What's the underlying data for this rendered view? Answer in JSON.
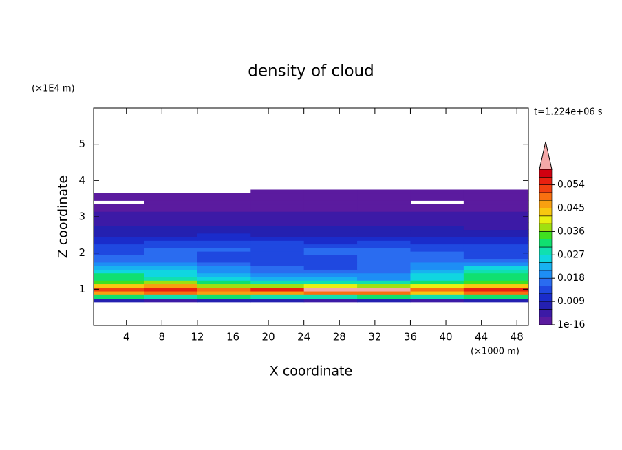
{
  "chart_data": {
    "type": "contour",
    "title": "density of cloud",
    "xlabel": "X coordinate",
    "ylabel": "Z coordinate",
    "xunit": "(×1000 m)",
    "yunit": "(×1E4 m)",
    "annotation": "t=1.224e+06 s",
    "xlim": [
      0.3,
      49.3
    ],
    "ylim": [
      0,
      6
    ],
    "xticks": [
      4,
      8,
      12,
      16,
      20,
      24,
      28,
      32,
      36,
      40,
      44,
      48
    ],
    "yticks": [
      1,
      2,
      3,
      4,
      5
    ],
    "x": [
      3,
      9,
      15,
      21,
      27,
      33,
      39,
      45
    ],
    "y": [
      0.7,
      0.8,
      0.9,
      1.0,
      1.1,
      1.2,
      1.3,
      1.4,
      1.5,
      1.6,
      1.7,
      1.8,
      1.9,
      2.0,
      2.1,
      2.2,
      2.3,
      2.4,
      2.5,
      2.6,
      2.7,
      2.8,
      2.9,
      3.0,
      3.1,
      3.2,
      3.3,
      3.4,
      3.5,
      3.6,
      3.7
    ],
    "z": [
      [
        0.006,
        0.005,
        0.006,
        0.006,
        0.005,
        0.006,
        0.005,
        0.006
      ],
      [
        0.03,
        0.028,
        0.031,
        0.027,
        0.029,
        0.03,
        0.027,
        0.032
      ],
      [
        0.046,
        0.05,
        0.047,
        0.045,
        0.049,
        0.05,
        0.044,
        0.048
      ],
      [
        0.052,
        0.055,
        0.05,
        0.054,
        0.062,
        0.061,
        0.05,
        0.056
      ],
      [
        0.042,
        0.045,
        0.038,
        0.037,
        0.04,
        0.036,
        0.039,
        0.044
      ],
      [
        0.034,
        0.036,
        0.03,
        0.028,
        0.029,
        0.027,
        0.031,
        0.035
      ],
      [
        0.03,
        0.028,
        0.025,
        0.022,
        0.021,
        0.02,
        0.026,
        0.03
      ],
      [
        0.031,
        0.026,
        0.023,
        0.02,
        0.019,
        0.019,
        0.025,
        0.032
      ],
      [
        0.026,
        0.024,
        0.02,
        0.017,
        0.016,
        0.017,
        0.022,
        0.028
      ],
      [
        0.021,
        0.021,
        0.018,
        0.015,
        0.014,
        0.016,
        0.02,
        0.024
      ],
      [
        0.018,
        0.019,
        0.016,
        0.013,
        0.014,
        0.015,
        0.018,
        0.02
      ],
      [
        0.016,
        0.017,
        0.014,
        0.012,
        0.013,
        0.015,
        0.016,
        0.017
      ],
      [
        0.015,
        0.015,
        0.013,
        0.012,
        0.014,
        0.015,
        0.015,
        0.014
      ],
      [
        0.014,
        0.015,
        0.014,
        0.013,
        0.015,
        0.016,
        0.015,
        0.013
      ],
      [
        0.014,
        0.015,
        0.015,
        0.014,
        0.015,
        0.016,
        0.014,
        0.013
      ],
      [
        0.013,
        0.014,
        0.014,
        0.014,
        0.013,
        0.014,
        0.013,
        0.012
      ],
      [
        0.011,
        0.012,
        0.012,
        0.012,
        0.011,
        0.012,
        0.011,
        0.01
      ],
      [
        0.01,
        0.01,
        0.01,
        0.01,
        0.009,
        0.01,
        0.009,
        0.009
      ],
      [
        0.008,
        0.008,
        0.009,
        0.008,
        0.008,
        0.008,
        0.008,
        0.007
      ],
      [
        0.007,
        0.007,
        0.007,
        0.007,
        0.007,
        0.007,
        0.007,
        0.006
      ],
      [
        0.006,
        0.006,
        0.006,
        0.006,
        0.006,
        0.006,
        0.006,
        0.005
      ],
      [
        0.005,
        0.005,
        0.005,
        0.005,
        0.005,
        0.005,
        0.005,
        0.004
      ],
      [
        0.004,
        0.004,
        0.005,
        0.004,
        0.004,
        0.005,
        0.004,
        0.004
      ],
      [
        0.004,
        0.004,
        0.004,
        0.004,
        0.003,
        0.004,
        0.004,
        0.003
      ],
      [
        0.003,
        0.003,
        0.003,
        0.003,
        0.003,
        0.003,
        0.003,
        0.003
      ],
      [
        0.002,
        0.002,
        0.002,
        0.002,
        0.002,
        0.002,
        0.002,
        0.002
      ],
      [
        0.002,
        0.002,
        0.002,
        0.002,
        0.002,
        0.002,
        0.002,
        0.002
      ],
      [
        null,
        0.001,
        0.001,
        0.001,
        0.001,
        0.001,
        null,
        0.001
      ],
      [
        0.001,
        0.001,
        0.001,
        0.001,
        0.001,
        0.001,
        0.001,
        0.001
      ],
      [
        0.001,
        0.001,
        0.001,
        0.001,
        0.001,
        0.001,
        0.001,
        0.001
      ],
      [
        null,
        null,
        null,
        0.001,
        0.001,
        0.001,
        0.001,
        0.001
      ]
    ],
    "levels": [
      1e-16,
      0.003,
      0.006,
      0.009,
      0.012,
      0.015,
      0.018,
      0.021,
      0.024,
      0.027,
      0.03,
      0.033,
      0.036,
      0.039,
      0.042,
      0.045,
      0.048,
      0.051,
      0.054,
      0.057,
      0.06
    ],
    "colors": [
      "#5b1b9f",
      "#3c1aa6",
      "#2420b0",
      "#1a2ccb",
      "#1f48e0",
      "#2a6cf0",
      "#1e8ef5",
      "#18b2f0",
      "#10d6e0",
      "#10e0b0",
      "#10e070",
      "#40e020",
      "#a0e010",
      "#e8f010",
      "#f8c810",
      "#f8a010",
      "#f87010",
      "#f04010",
      "#e82010",
      "#d00010"
    ],
    "extend_color": "#f4a8a8",
    "colorbar_ticks": [
      1e-16,
      0.009,
      0.018,
      0.027,
      0.036,
      0.045,
      0.054
    ]
  }
}
